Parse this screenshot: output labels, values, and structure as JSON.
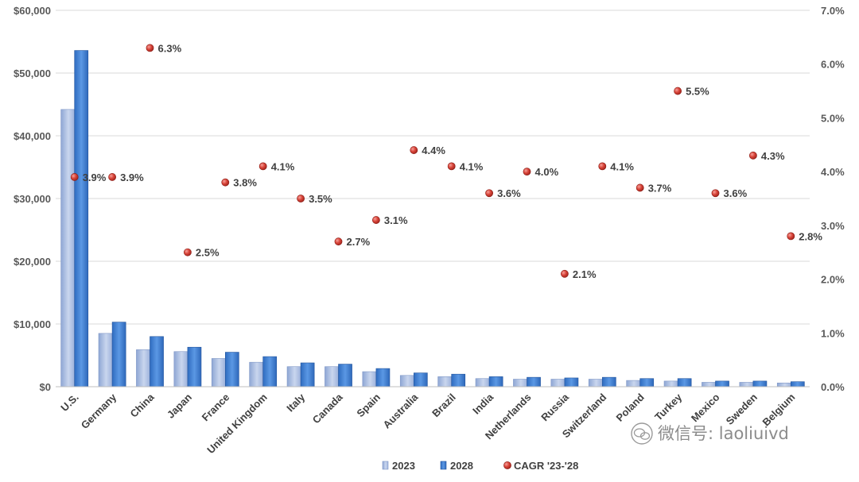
{
  "chart_data": {
    "type": "bar",
    "title": "",
    "xlabel": "",
    "ylabel": "",
    "ylim": [
      0,
      60000
    ],
    "y2lim": [
      0,
      7.0
    ],
    "grid": true,
    "legend_position": "bottom",
    "categories": [
      "U.S.",
      "Germany",
      "China",
      "Japan",
      "France",
      "United Kingdom",
      "Italy",
      "Canada",
      "Spain",
      "Australia",
      "Brazil",
      "India",
      "Netherlands",
      "Russia",
      "Switzerland",
      "Poland",
      "Turkey",
      "Mexico",
      "Sweden",
      "Belgium"
    ],
    "y_ticks": [
      "$0",
      "$10,000",
      "$20,000",
      "$30,000",
      "$40,000",
      "$50,000",
      "$60,000"
    ],
    "y2_ticks": [
      "0.0%",
      "1.0%",
      "2.0%",
      "3.0%",
      "4.0%",
      "5.0%",
      "6.0%",
      "7.0%"
    ],
    "series": [
      {
        "name": "2023",
        "type": "bar",
        "color": "#a9bde0",
        "values": [
          44200,
          8500,
          5900,
          5600,
          4500,
          3900,
          3200,
          3200,
          2400,
          1800,
          1600,
          1300,
          1200,
          1200,
          1200,
          1000,
          900,
          700,
          700,
          600
        ]
      },
      {
        "name": "2028",
        "type": "bar",
        "color": "#3f7fd4",
        "values": [
          53600,
          10300,
          8000,
          6300,
          5500,
          4800,
          3800,
          3600,
          2900,
          2200,
          2000,
          1600,
          1500,
          1400,
          1500,
          1300,
          1300,
          900,
          900,
          800
        ]
      },
      {
        "name": "CAGR '23-'28",
        "type": "scatter",
        "axis": "right",
        "color": "#c0392b",
        "values": [
          3.9,
          3.9,
          6.3,
          2.5,
          3.8,
          4.1,
          3.5,
          2.7,
          3.1,
          4.4,
          4.1,
          3.6,
          4.0,
          2.1,
          4.1,
          3.7,
          5.5,
          3.6,
          4.3,
          2.8
        ]
      }
    ],
    "data_labels": [
      "3.9%",
      "3.9%",
      "6.3%",
      "2.5%",
      "3.8%",
      "4.1%",
      "3.5%",
      "2.7%",
      "3.1%",
      "4.4%",
      "4.1%",
      "3.6%",
      "4.0%",
      "2.1%",
      "4.1%",
      "3.7%",
      "5.5%",
      "3.6%",
      "4.3%",
      "2.8%"
    ]
  },
  "watermark": {
    "icon": "wechat-icon",
    "text": "微信号: laoliuivd"
  }
}
